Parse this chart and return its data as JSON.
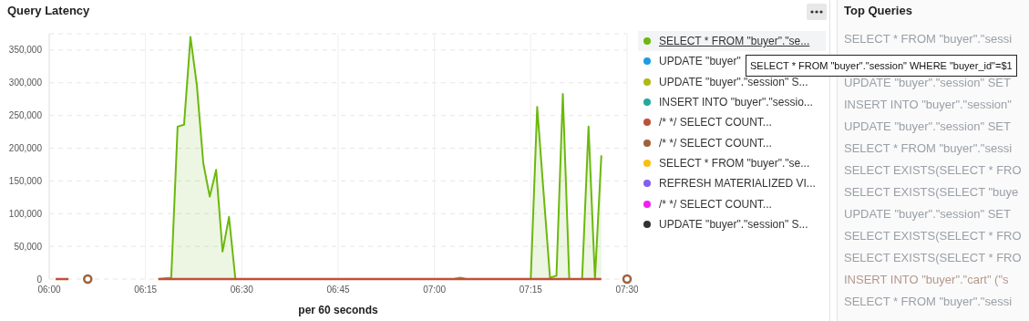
{
  "chart_data": {
    "type": "line",
    "title": "Query Latency",
    "xlabel": "per 60 seconds",
    "xlim": [
      6,
      7.5
    ],
    "xticks": [
      {
        "value": 6,
        "label": "06:00"
      },
      {
        "value": 6.25,
        "label": "06:15"
      },
      {
        "value": 6.5,
        "label": "06:30"
      },
      {
        "value": 6.75,
        "label": "06:45"
      },
      {
        "value": 7,
        "label": "07:00"
      },
      {
        "value": 7.25,
        "label": "07:15"
      },
      {
        "value": 7.5,
        "label": "07:30"
      }
    ],
    "ylim": [
      0,
      375000
    ],
    "yticks": [
      {
        "value": 0,
        "label": "0"
      },
      {
        "value": 50000,
        "label": "50,000"
      },
      {
        "value": 100000,
        "label": "100,000"
      },
      {
        "value": 150000,
        "label": "150,000"
      },
      {
        "value": 200000,
        "label": "200,000"
      },
      {
        "value": 250000,
        "label": "250,000"
      },
      {
        "value": 300000,
        "label": "300,000"
      },
      {
        "value": 350000,
        "label": "350,000"
      }
    ],
    "grid": true,
    "legend": "right",
    "line_style": "solid",
    "series": [
      {
        "name": "SELECT * FROM \"buyer\".\"se...",
        "color": "#6cb80e",
        "type": "area",
        "x": [
          6.2833,
          6.3,
          6.3167,
          6.3333,
          6.35,
          6.3667,
          6.3833,
          6.4,
          6.4167,
          6.4333,
          6.45,
          6.4667,
          6.4833,
          7.05,
          7.0667,
          7.0833,
          7.25,
          7.2667,
          7.2833,
          7.3,
          7.3167,
          7.3333,
          7.35,
          7.3667,
          7.3833,
          7.4,
          7.4167,
          7.4333
        ],
        "values": [
          0,
          1000,
          2000,
          233000,
          236000,
          370000,
          296000,
          177000,
          126000,
          167000,
          42000,
          95000,
          0,
          0,
          2000,
          0,
          0,
          263000,
          132000,
          2000,
          5000,
          283000,
          0,
          0,
          0,
          233000,
          0,
          189000
        ]
      },
      {
        "name": "UPDATE \"buyer\"",
        "color": "#1f9be0"
      },
      {
        "name": "UPDATE \"buyer\".\"session\" S...",
        "color": "#b0b812"
      },
      {
        "name": "INSERT INTO \"buyer\".\"sessio...",
        "color": "#25a89e"
      },
      {
        "name": "/* */ SELECT COUNT...",
        "color": "#c0503a",
        "x": [
          6.0167,
          6.05,
          6.0667,
          6.2833,
          7.4333
        ],
        "values": [
          0,
          0,
          null,
          0,
          0
        ]
      },
      {
        "name": "/* */ SELECT COUNT...",
        "color": "#a0603a",
        "type": "scatter",
        "marker": "circle",
        "x": [
          6.1,
          7.5
        ],
        "values": [
          0,
          0
        ]
      },
      {
        "name": "SELECT * FROM \"buyer\".\"se...",
        "color": "#fbbf0d"
      },
      {
        "name": "REFRESH MATERIALIZED VI...",
        "color": "#8060f0"
      },
      {
        "name": "/* */ SELECT COUNT...",
        "color": "#f020f0"
      },
      {
        "name": "UPDATE \"buyer\".\"session\" S...",
        "color": "#333333"
      }
    ],
    "annotations": [
      "SELECT * FROM \"buyer\".\"session\" WHERE \"buyer_id\"=$1",
      "Top Queries",
      "SELECT * FROM \"buyer\".\"sessi",
      "UPDATE \"buyer\".\"session\" SET",
      "INSERT INTO \"buyer\".\"session\"",
      "UPDATE \"buyer\".\"session\" SET",
      "SELECT * FROM \"buyer\".\"sessi",
      "SELECT EXISTS(SELECT * FRO",
      "SELECT EXISTS(SELECT \"buye",
      "UPDATE \"buyer\".\"session\" SET",
      "SELECT EXISTS(SELECT * FRO",
      "SELECT EXISTS(SELECT * FRO",
      "INSERT INTO \"buyer\".\"cart\" (\"s",
      "SELECT * FROM \"buyer\".\"sessi"
    ]
  }
}
